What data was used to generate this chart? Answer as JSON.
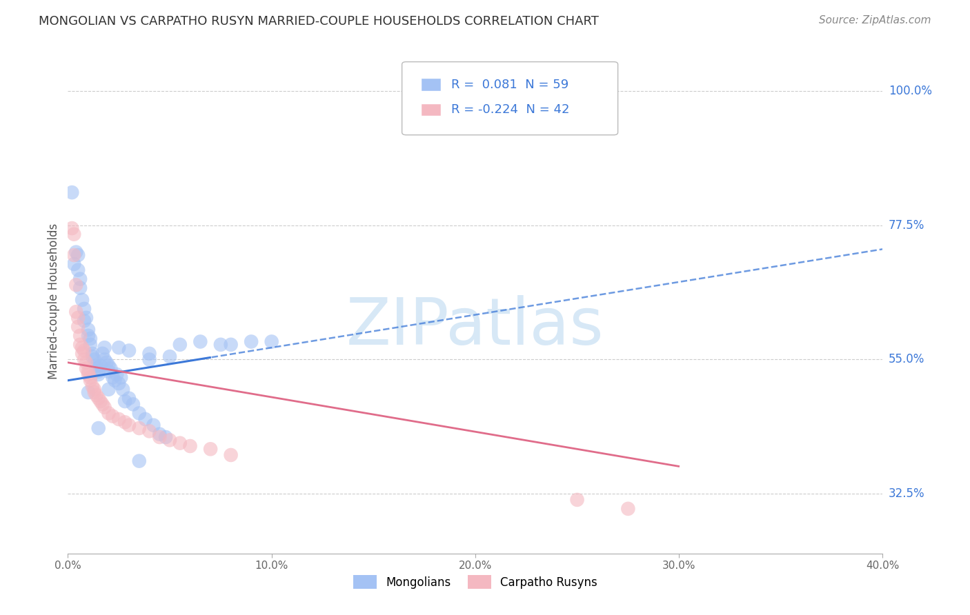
{
  "title": "MONGOLIAN VS CARPATHO RUSYN MARRIED-COUPLE HOUSEHOLDS CORRELATION CHART",
  "source": "Source: ZipAtlas.com",
  "ylabel": "Married-couple Households",
  "xlim": [
    0.0,
    40.0
  ],
  "ylim": [
    22.5,
    107.0
  ],
  "yticks": [
    32.5,
    55.0,
    77.5,
    100.0
  ],
  "xtick_vals": [
    0.0,
    10.0,
    20.0,
    30.0,
    40.0
  ],
  "xtick_labels": [
    "0.0%",
    "10.0%",
    "20.0%",
    "30.0%",
    "40.0%"
  ],
  "legend_blue_r": "0.081",
  "legend_blue_n": "59",
  "legend_pink_r": "-0.224",
  "legend_pink_n": "42",
  "blue_color": "#a4c2f4",
  "pink_color": "#f4b8c1",
  "blue_line_color": "#3c78d8",
  "pink_line_color": "#e06c8a",
  "axis_label_color": "#3c78d8",
  "title_color": "#333333",
  "source_color": "#888888",
  "grid_color": "#cccccc",
  "watermark_color": "#d0e4f5",
  "watermark_text": "ZIPatlas",
  "blue_solid_xmax": 7.0,
  "blue_intercept": 51.5,
  "blue_slope": 0.55,
  "pink_intercept": 54.5,
  "pink_slope": -0.58,
  "blue_x": [
    0.2,
    0.3,
    0.4,
    0.5,
    0.5,
    0.6,
    0.6,
    0.7,
    0.8,
    0.8,
    0.9,
    1.0,
    1.0,
    1.1,
    1.1,
    1.2,
    1.2,
    1.3,
    1.4,
    1.4,
    1.5,
    1.5,
    1.6,
    1.7,
    1.8,
    1.8,
    1.9,
    2.0,
    2.0,
    2.1,
    2.2,
    2.3,
    2.4,
    2.5,
    2.6,
    2.7,
    2.8,
    3.0,
    3.2,
    3.5,
    3.8,
    4.0,
    4.2,
    4.5,
    4.8,
    5.0,
    5.5,
    1.0,
    1.5,
    2.0,
    2.5,
    3.0,
    3.5,
    4.0,
    6.5,
    7.5,
    8.0,
    9.0,
    10.0
  ],
  "blue_y": [
    83.0,
    71.0,
    73.0,
    72.5,
    70.0,
    68.5,
    67.0,
    65.0,
    63.5,
    61.5,
    62.0,
    60.0,
    59.0,
    58.5,
    57.5,
    56.0,
    55.5,
    55.0,
    54.0,
    53.5,
    53.0,
    52.5,
    54.0,
    56.0,
    57.0,
    55.0,
    54.5,
    54.0,
    53.0,
    53.5,
    52.0,
    51.5,
    52.5,
    51.0,
    52.0,
    50.0,
    48.0,
    48.5,
    47.5,
    46.0,
    45.0,
    56.0,
    44.0,
    42.5,
    42.0,
    55.5,
    57.5,
    49.5,
    43.5,
    50.0,
    57.0,
    56.5,
    38.0,
    55.0,
    58.0,
    57.5,
    57.5,
    58.0,
    58.0
  ],
  "pink_x": [
    0.2,
    0.3,
    0.3,
    0.4,
    0.4,
    0.5,
    0.5,
    0.6,
    0.6,
    0.7,
    0.7,
    0.8,
    0.8,
    0.9,
    0.9,
    1.0,
    1.0,
    1.1,
    1.1,
    1.2,
    1.3,
    1.3,
    1.4,
    1.5,
    1.6,
    1.7,
    1.8,
    2.0,
    2.2,
    2.5,
    2.8,
    3.0,
    3.5,
    4.0,
    4.5,
    5.0,
    5.5,
    6.0,
    7.0,
    8.0,
    25.0,
    27.5
  ],
  "pink_y": [
    77.0,
    76.0,
    72.5,
    67.5,
    63.0,
    62.0,
    60.5,
    59.0,
    57.5,
    57.0,
    56.0,
    56.5,
    55.0,
    54.5,
    53.5,
    53.0,
    52.5,
    52.0,
    51.5,
    50.5,
    50.0,
    49.5,
    49.0,
    48.5,
    48.0,
    47.5,
    47.0,
    46.0,
    45.5,
    45.0,
    44.5,
    44.0,
    43.5,
    43.0,
    42.0,
    41.5,
    41.0,
    40.5,
    40.0,
    39.0,
    31.5,
    30.0
  ]
}
